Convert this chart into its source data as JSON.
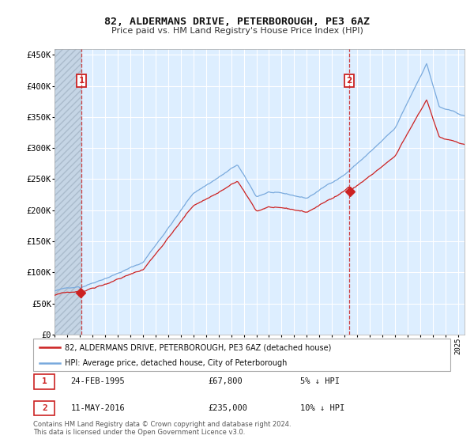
{
  "title": "82, ALDERMANS DRIVE, PETERBOROUGH, PE3 6AZ",
  "subtitle": "Price paid vs. HM Land Registry's House Price Index (HPI)",
  "purchase1_date": "24-FEB-1995",
  "purchase1_price": 67800,
  "purchase1_label": "5% ↓ HPI",
  "purchase1_year": 1995.13,
  "purchase2_date": "11-MAY-2016",
  "purchase2_price": 235000,
  "purchase2_label": "10% ↓ HPI",
  "purchase2_year": 2016.37,
  "hpi_line_color": "#7aaadd",
  "price_line_color": "#cc2222",
  "background_color": "#ddeeff",
  "hatch_bg_color": "#c5d5e5",
  "grid_color": "#ffffff",
  "legend_label1": "82, ALDERMANS DRIVE, PETERBOROUGH, PE3 6AZ (detached house)",
  "legend_label2": "HPI: Average price, detached house, City of Peterborough",
  "footer": "Contains HM Land Registry data © Crown copyright and database right 2024.\nThis data is licensed under the Open Government Licence v3.0.",
  "ylim": [
    0,
    460000
  ],
  "yticks": [
    0,
    50000,
    100000,
    150000,
    200000,
    250000,
    300000,
    350000,
    400000,
    450000
  ],
  "xstart": 1993.0,
  "xend": 2025.5
}
